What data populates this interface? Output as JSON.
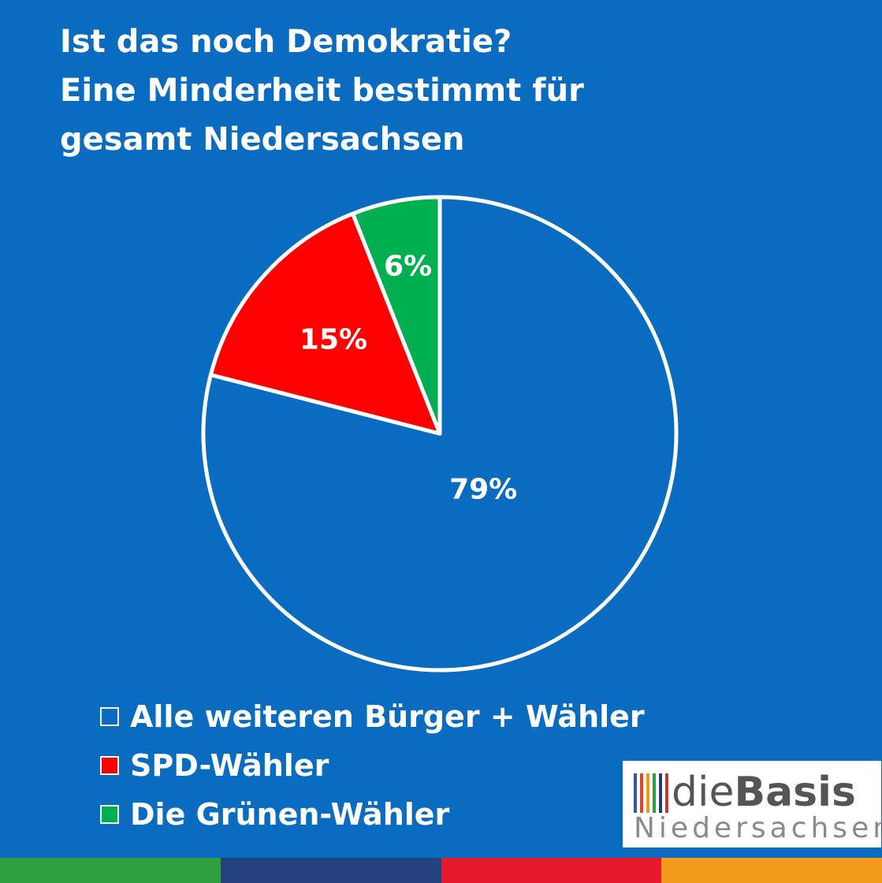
{
  "chart_data": {
    "type": "pie",
    "title_lines": [
      "Ist das noch Demokratie?",
      "Eine Minderheit bestimmt für",
      "gesamt Niedersachsen"
    ],
    "slices": [
      {
        "name": "Alle weiteren Bürger + Wähler",
        "value": 79,
        "label": "79%",
        "color": "#0a6cc1"
      },
      {
        "name": "SPD-Wähler",
        "value": 15,
        "label": "15%",
        "color": "#ff0000"
      },
      {
        "name": "Die Grünen-Wähler",
        "value": 6,
        "label": "6%",
        "color": "#00b050"
      }
    ],
    "start": "top",
    "direction": "clockwise",
    "slice_border_color": "#ffffff",
    "legend_position": "bottom-left"
  },
  "logo": {
    "word_light": "die",
    "word_bold": "Basis",
    "subtitle": "Niedersachsen",
    "bar_colors": [
      "#3a54a4",
      "#e8412c",
      "#f39c12",
      "#2e9e48",
      "#1d3f7a",
      "#c0392b"
    ]
  },
  "footer_strip_colors": [
    "#2e9e3f",
    "#24427e",
    "#e3192b",
    "#f49a1c"
  ]
}
